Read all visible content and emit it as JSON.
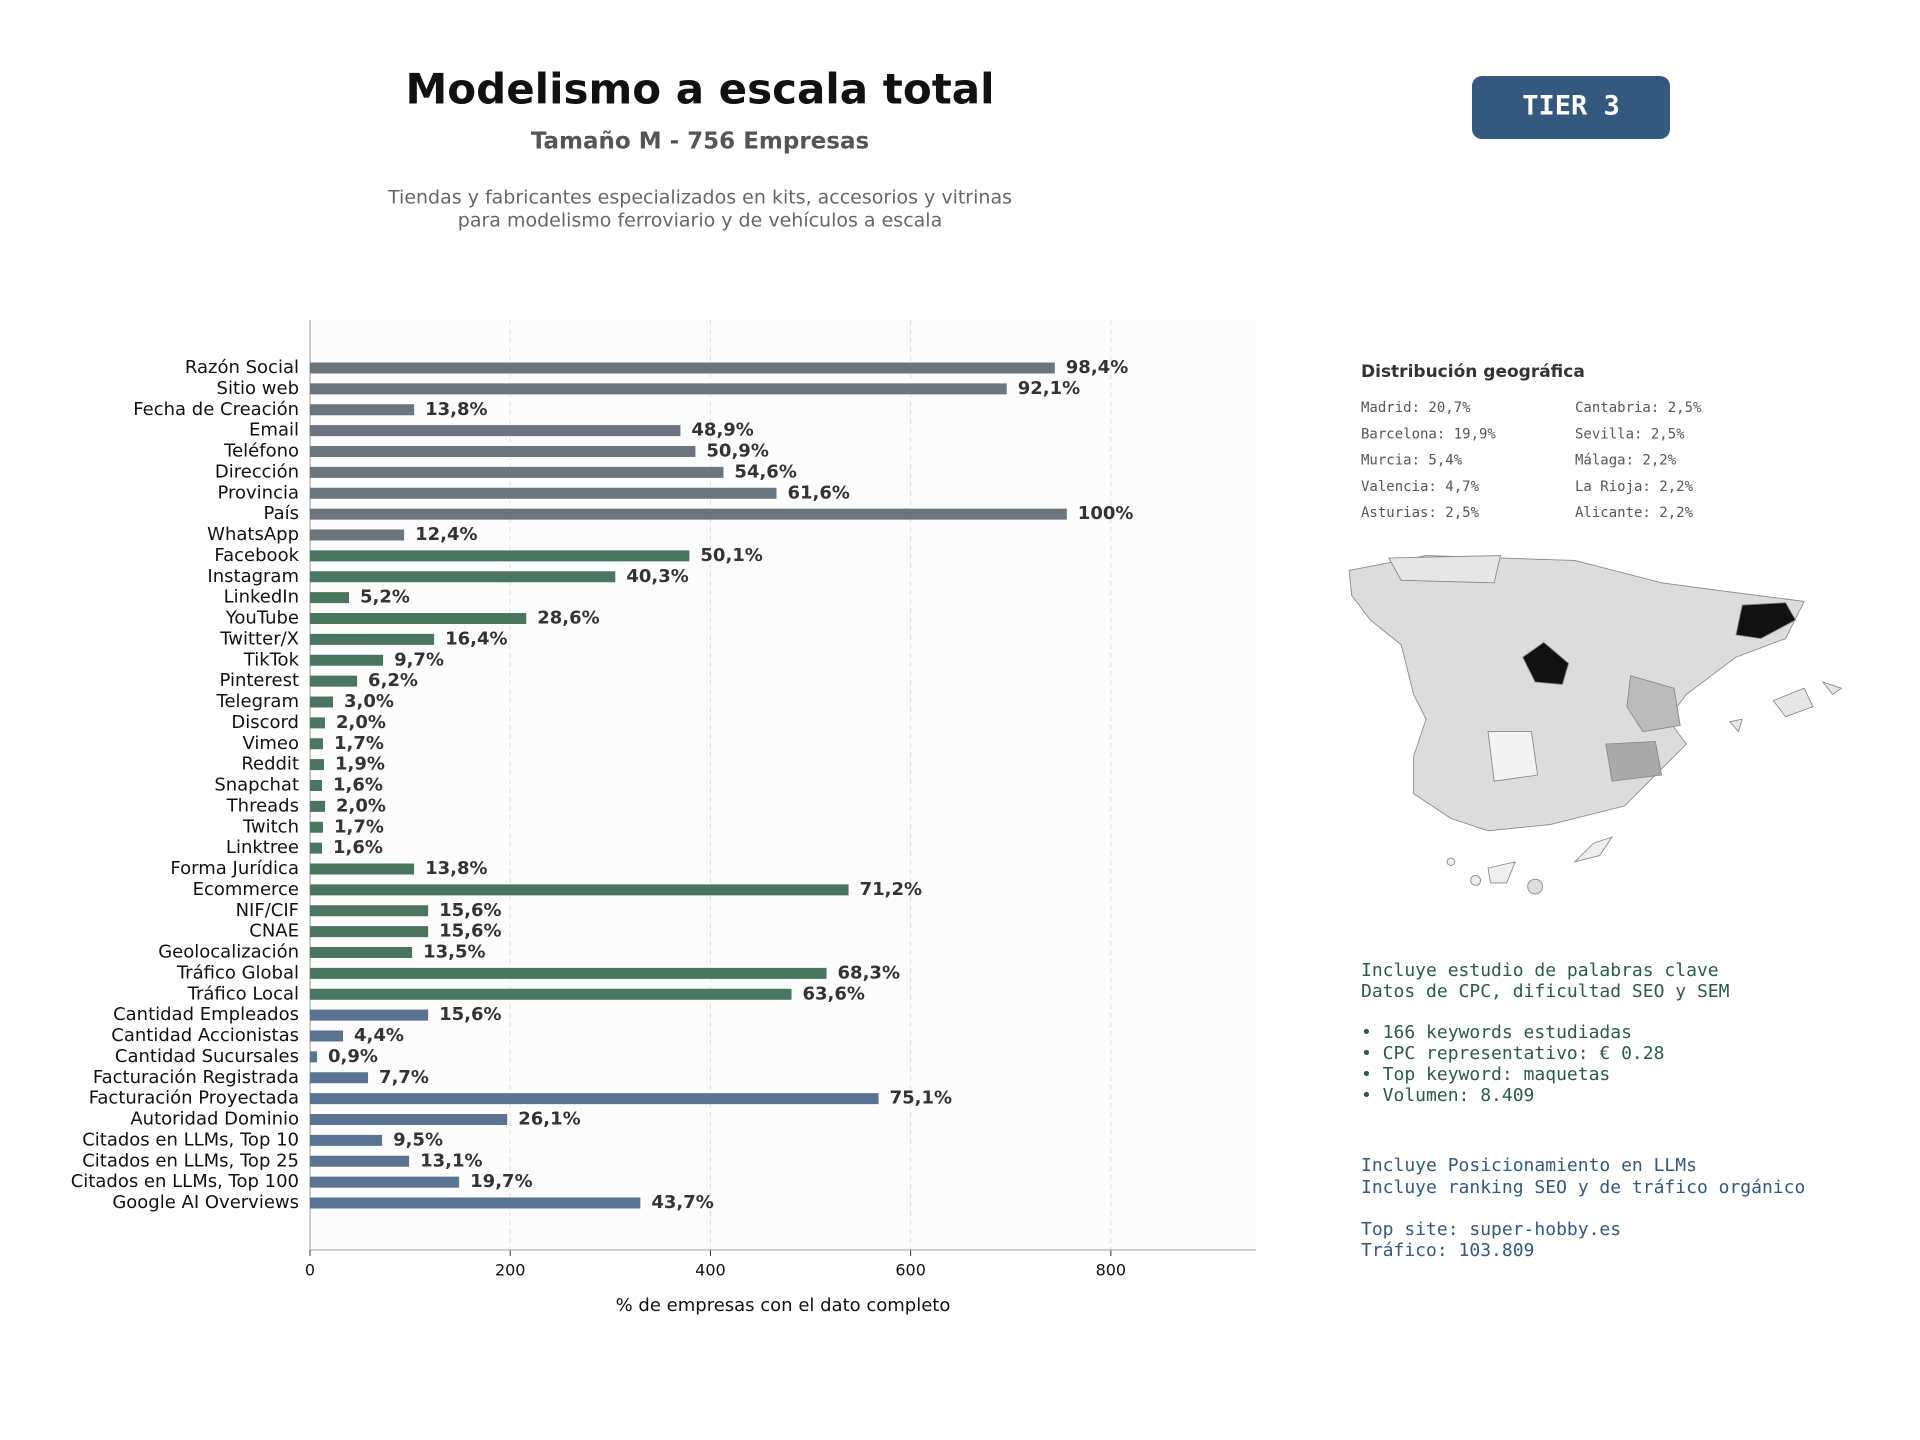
{
  "chart_data": {
    "type": "barh",
    "title": "Modelismo a escala total",
    "subtitle": "Tamaño M - 756 Empresas",
    "description": [
      "Tiendas y fabricantes especializados en kits, accesorios y vitrinas",
      "para modelismo ferroviario y de vehículos a escala"
    ],
    "badge": "TIER 3",
    "xlabel": "% de empresas con el dato completo",
    "categories": [
      "Razón Social",
      "Sitio web",
      "Fecha de Creación",
      "Email",
      "Teléfono",
      "Dirección",
      "Provincia",
      "País",
      "WhatsApp",
      "Facebook",
      "Instagram",
      "LinkedIn",
      "YouTube",
      "Twitter/X",
      "TikTok",
      "Pinterest",
      "Telegram",
      "Discord",
      "Vimeo",
      "Reddit",
      "Snapchat",
      "Threads",
      "Twitch",
      "Linktree",
      "Forma Jurídica",
      "Ecommerce",
      "NIF/CIF",
      "CNAE",
      "Geolocalización",
      "Tráfico Global",
      "Tráfico Local",
      "Cantidad Empleados",
      "Cantidad Accionistas",
      "Cantidad Sucursales",
      "Facturación Registrada",
      "Facturación Proyectada",
      "Autoridad Dominio",
      "Citados en LLMs, Top 10",
      "Citados en LLMs, Top 25",
      "Citados en LLMs, Top 100",
      "Google AI Overviews"
    ],
    "values": [
      744,
      696,
      104,
      370,
      385,
      413,
      466,
      756,
      94,
      379,
      305,
      39,
      216,
      124,
      73,
      47,
      23,
      15,
      13,
      14,
      12,
      15,
      13,
      12,
      104,
      538,
      118,
      118,
      102,
      516,
      481,
      118,
      33,
      7,
      58,
      568,
      197,
      72,
      99,
      149,
      330
    ],
    "value_labels": [
      "98,4%",
      "92,1%",
      "13,8%",
      "48,9%",
      "50,9%",
      "54,6%",
      "61,6%",
      "100%",
      "12,4%",
      "50,1%",
      "40,3%",
      "5,2%",
      "28,6%",
      "16,4%",
      "9,7%",
      "6,2%",
      "3,0%",
      "2,0%",
      "1,7%",
      "1,9%",
      "1,6%",
      "2,0%",
      "1,7%",
      "1,6%",
      "13,8%",
      "71,2%",
      "15,6%",
      "15,6%",
      "13,5%",
      "68,3%",
      "63,6%",
      "15,6%",
      "4,4%",
      "0,9%",
      "7,7%",
      "75,1%",
      "26,1%",
      "9,5%",
      "13,1%",
      "19,7%",
      "43,7%"
    ],
    "colors": [
      "#6c757d",
      "#6c757d",
      "#6c757d",
      "#6c757d",
      "#6c757d",
      "#6c757d",
      "#6c757d",
      "#6c757d",
      "#6c757d",
      "#4a7561",
      "#4a7561",
      "#4a7561",
      "#4a7561",
      "#4a7561",
      "#4a7561",
      "#4a7561",
      "#4a7561",
      "#4a7561",
      "#4a7561",
      "#4a7561",
      "#4a7561",
      "#4a7561",
      "#4a7561",
      "#4a7561",
      "#4a7561",
      "#4a7561",
      "#4a7561",
      "#4a7561",
      "#4a7561",
      "#4a7561",
      "#4a7561",
      "#5a7391",
      "#5a7391",
      "#5a7391",
      "#5a7391",
      "#5a7391",
      "#5a7391",
      "#5a7391",
      "#5a7391",
      "#5a7391",
      "#5a7391"
    ],
    "xlim": [
      0,
      945
    ],
    "xticks": [
      0,
      200,
      400,
      600,
      800
    ],
    "grid": true
  },
  "geo": {
    "title": "Distribución geográfica",
    "items": [
      "Madrid: 20,7%",
      "Barcelona: 19,9%",
      "Murcia: 5,4%",
      "Valencia: 4,7%",
      "Asturias: 2,5%",
      "Cantabria: 2,5%",
      "Sevilla: 2,5%",
      "Málaga: 2,2%",
      "La Rioja: 2,2%",
      "Alicante: 2,2%"
    ]
  },
  "notes": {
    "seo": [
      "Incluye estudio de palabras clave",
      "Datos de CPC, dificultad SEO y SEM",
      "• 166 keywords estudiadas",
      "• CPC representativo: € 0.28",
      "• Top keyword: maquetas",
      "• Volumen: 8.409"
    ],
    "llm": [
      "Incluye Posicionamiento en LLMs",
      "Incluye ranking SEO y de tráfico orgánico",
      "Top site: super-hobby.es",
      "Tráfico: 103.809"
    ]
  }
}
